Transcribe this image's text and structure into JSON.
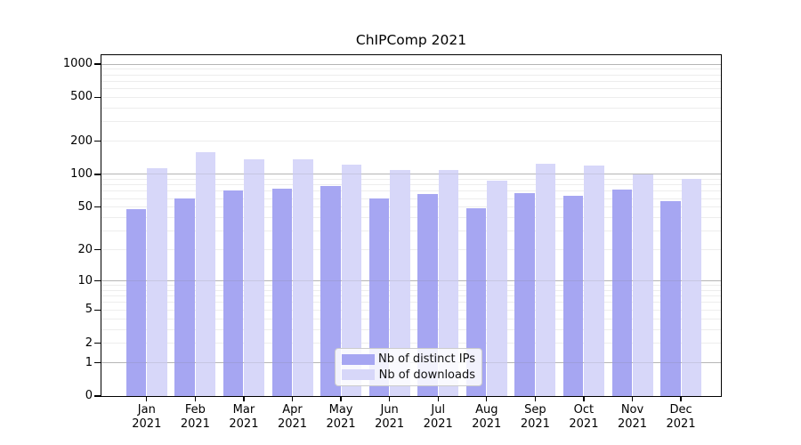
{
  "chart_data": {
    "type": "bar",
    "title": "ChIPComp 2021",
    "scale": "log10(1+x)",
    "grid": true,
    "legend_position": "lower-center",
    "year_label": "2021",
    "categories": [
      "Jan",
      "Feb",
      "Mar",
      "Apr",
      "May",
      "Jun",
      "Jul",
      "Aug",
      "Sep",
      "Oct",
      "Nov",
      "Dec"
    ],
    "series": [
      {
        "name": "Nb of distinct IPs",
        "color": "#a6a6f2",
        "values": [
          48,
          60,
          71,
          74,
          78,
          60,
          66,
          49,
          67,
          64,
          72,
          57
        ]
      },
      {
        "name": "Nb of downloads",
        "color": "#d7d7f9",
        "values": [
          114,
          158,
          137,
          138,
          122,
          109,
          110,
          88,
          125,
          120,
          100,
          91
        ]
      }
    ],
    "yticks": [
      1000,
      500,
      200,
      100,
      50,
      20,
      10,
      5,
      2,
      1,
      0
    ],
    "minor_gridlines": [
      2,
      3,
      4,
      5,
      6,
      7,
      8,
      9,
      20,
      30,
      40,
      50,
      60,
      70,
      80,
      90,
      200,
      300,
      400,
      500,
      600,
      700,
      800,
      900
    ],
    "major_gridlines": [
      1,
      10,
      100,
      1000
    ],
    "ylim": [
      0,
      1200
    ]
  }
}
